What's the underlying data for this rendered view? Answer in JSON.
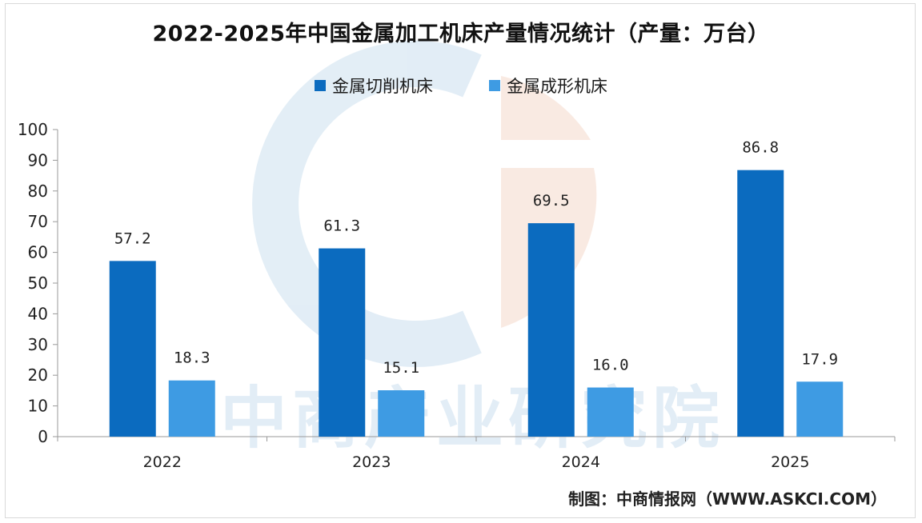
{
  "title": "2022-2025年中国金属加工机床产量情况统计（产量：万台）",
  "footer": "制图：中商情报网（WWW.ASKCI.COM）",
  "watermark": "中商产业研究院",
  "colors": {
    "series1": "#0b6bbf",
    "series2": "#3e9be3",
    "axis": "#999999"
  },
  "chart_data": {
    "type": "bar",
    "title": "2022-2025年中国金属加工机床产量情况统计（产量：万台）",
    "xlabel": "",
    "ylabel": "",
    "ylim": [
      0,
      100
    ],
    "yticks": [
      0,
      10,
      20,
      30,
      40,
      50,
      60,
      70,
      80,
      90,
      100
    ],
    "categories": [
      "2022",
      "2023",
      "2024",
      "2025"
    ],
    "series": [
      {
        "name": "金属切削机床",
        "values": [
          57.2,
          61.3,
          69.5,
          86.8
        ],
        "labels": [
          "57.2",
          "61.3",
          "69.5",
          "86.8"
        ]
      },
      {
        "name": "金属成形机床",
        "values": [
          18.3,
          15.1,
          16.0,
          17.9
        ],
        "labels": [
          "18.3",
          "15.1",
          "16.0",
          "17.9"
        ]
      }
    ],
    "legend_position": "top-center",
    "grid": false
  }
}
